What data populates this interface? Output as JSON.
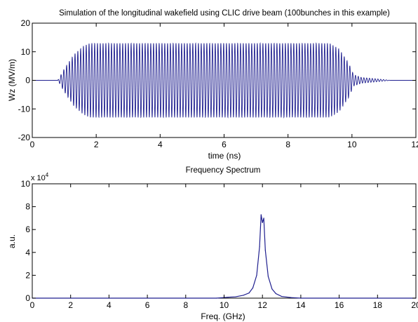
{
  "figure_title": "Simulation of the longitudinal wakefield using CLIC drive beam (100bunches in this example)",
  "chart_data": [
    {
      "type": "line",
      "title": "Simulation of the longitudinal wakefield using CLIC drive beam (100bunches in this example)",
      "xlabel": "time (ns)",
      "ylabel": "Wz (MV/m)",
      "xlim": [
        0,
        12
      ],
      "ylim": [
        -20,
        20
      ],
      "xticks": [
        0,
        2,
        4,
        6,
        8,
        10,
        12
      ],
      "yticks": [
        -20,
        -10,
        0,
        10,
        20
      ],
      "grid": false,
      "color": "#1f1f8f",
      "signal": {
        "description_units": "envelope amplitude in MV/m vs time in ns",
        "envelope_points": [
          {
            "x": 0.0,
            "y": 0
          },
          {
            "x": 0.8,
            "y": 0
          },
          {
            "x": 1.0,
            "y": 4
          },
          {
            "x": 1.3,
            "y": 9
          },
          {
            "x": 1.6,
            "y": 12
          },
          {
            "x": 1.8,
            "y": 13
          },
          {
            "x": 9.3,
            "y": 13
          },
          {
            "x": 9.6,
            "y": 11
          },
          {
            "x": 9.9,
            "y": 6
          },
          {
            "x": 10.05,
            "y": 2
          },
          {
            "x": 10.3,
            "y": 1
          },
          {
            "x": 10.8,
            "y": 0.5
          },
          {
            "x": 11.2,
            "y": 0
          },
          {
            "x": 12.0,
            "y": 0
          }
        ],
        "carrier_frequency_ghz": 12
      }
    },
    {
      "type": "line",
      "title": "Frequency Spectrum",
      "xlabel": "Freq. (GHz)",
      "ylabel": "a.u.",
      "y_multiplier": "x 10",
      "y_multiplier_exp": "4",
      "xlim": [
        0,
        20
      ],
      "ylim": [
        0,
        10
      ],
      "xticks": [
        0,
        2,
        4,
        6,
        8,
        10,
        12,
        14,
        16,
        18,
        20
      ],
      "yticks": [
        0,
        2,
        4,
        6,
        8,
        10
      ],
      "grid": false,
      "color": "#1f1f8f",
      "points": [
        {
          "x": 0.0,
          "y": 0
        },
        {
          "x": 9.6,
          "y": 0
        },
        {
          "x": 10.2,
          "y": 0.08
        },
        {
          "x": 10.6,
          "y": 0.12
        },
        {
          "x": 11.0,
          "y": 0.25
        },
        {
          "x": 11.3,
          "y": 0.45
        },
        {
          "x": 11.5,
          "y": 0.9
        },
        {
          "x": 11.7,
          "y": 2.0
        },
        {
          "x": 11.85,
          "y": 4.5
        },
        {
          "x": 11.93,
          "y": 7.3
        },
        {
          "x": 12.0,
          "y": 6.6
        },
        {
          "x": 12.07,
          "y": 7.0
        },
        {
          "x": 12.15,
          "y": 4.2
        },
        {
          "x": 12.3,
          "y": 1.9
        },
        {
          "x": 12.5,
          "y": 0.8
        },
        {
          "x": 12.7,
          "y": 0.4
        },
        {
          "x": 13.0,
          "y": 0.15
        },
        {
          "x": 13.5,
          "y": 0.05
        },
        {
          "x": 14.0,
          "y": 0
        },
        {
          "x": 20.0,
          "y": 0
        }
      ]
    }
  ]
}
